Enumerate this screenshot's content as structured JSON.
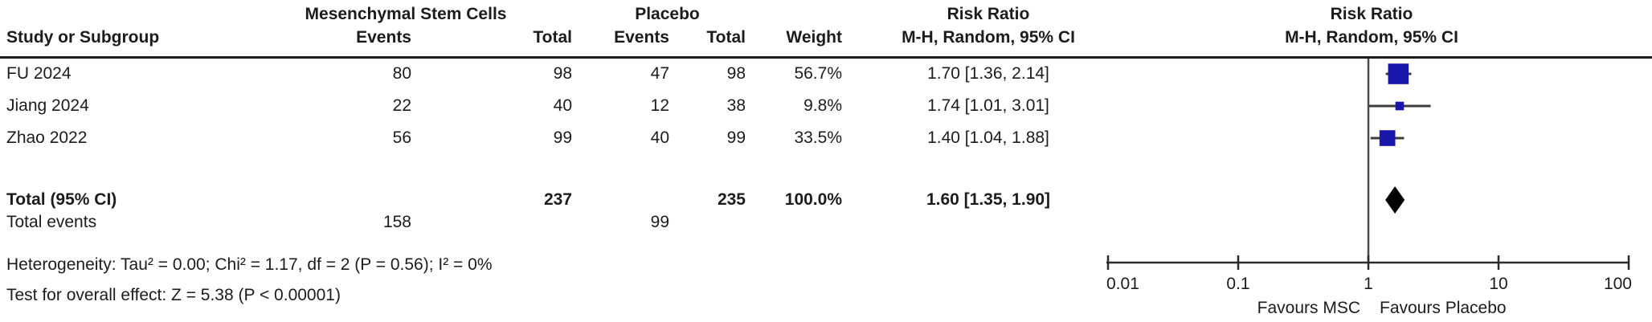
{
  "table": {
    "group_headers": {
      "msc": "Mesenchymal Stem Cells",
      "placebo": "Placebo",
      "risk_ratio": "Risk Ratio",
      "risk_ratio_plot": "Risk Ratio"
    },
    "col_headers": {
      "study": "Study or Subgroup",
      "events": "Events",
      "total": "Total",
      "events2": "Events",
      "total2": "Total",
      "weight": "Weight",
      "ci": "M-H, Random, 95% CI",
      "ci_plot": "M-H, Random, 95% CI"
    },
    "studies": [
      {
        "name": "FU 2024",
        "msc_events": "80",
        "msc_total": "98",
        "pbo_events": "47",
        "pbo_total": "98",
        "weight": "56.7%",
        "rr_text": "1.70 [1.36, 2.14]"
      },
      {
        "name": "Jiang 2024",
        "msc_events": "22",
        "msc_total": "40",
        "pbo_events": "12",
        "pbo_total": "38",
        "weight": "9.8%",
        "rr_text": "1.74 [1.01, 3.01]"
      },
      {
        "name": "Zhao 2022",
        "msc_events": "56",
        "msc_total": "99",
        "pbo_events": "40",
        "pbo_total": "99",
        "weight": "33.5%",
        "rr_text": "1.40 [1.04, 1.88]"
      }
    ],
    "total_row": {
      "label": "Total (95% CI)",
      "msc_total": "237",
      "pbo_total": "235",
      "weight": "100.0%",
      "rr_text": "1.60 [1.35, 1.90]"
    },
    "total_events": {
      "label": "Total events",
      "msc": "158",
      "pbo": "99"
    },
    "heterogeneity": "Heterogeneity: Tau² = 0.00; Chi² = 1.17, df = 2 (P = 0.56); I² = 0%",
    "overall_effect": "Test for overall effect: Z = 5.38 (P < 0.00001)"
  },
  "chart_data": {
    "type": "forest",
    "scale": "log10",
    "measure": "Risk Ratio, M-H, Random, 95% CI",
    "xlim": [
      0.01,
      100
    ],
    "axis_ticks": [
      0.01,
      0.1,
      1,
      10,
      100
    ],
    "tick_labels": [
      "0.01",
      "0.1",
      "1",
      "10",
      "100"
    ],
    "null_value": 1,
    "favours_left": "Favours MSC",
    "favours_right": "Favours Placebo",
    "studies": [
      {
        "name": "FU 2024",
        "rr": 1.7,
        "ci_low": 1.36,
        "ci_high": 2.14,
        "weight": 56.7
      },
      {
        "name": "Jiang 2024",
        "rr": 1.74,
        "ci_low": 1.01,
        "ci_high": 3.01,
        "weight": 9.8
      },
      {
        "name": "Zhao 2022",
        "rr": 1.4,
        "ci_low": 1.04,
        "ci_high": 1.88,
        "weight": 33.5
      }
    ],
    "total": {
      "rr": 1.6,
      "ci_low": 1.35,
      "ci_high": 1.9
    },
    "marker_color": "#1a17ad",
    "ci_line_color": "#3d3d3d",
    "axis_color": "#2b2b2b",
    "text_color": "#1c1c1c"
  }
}
